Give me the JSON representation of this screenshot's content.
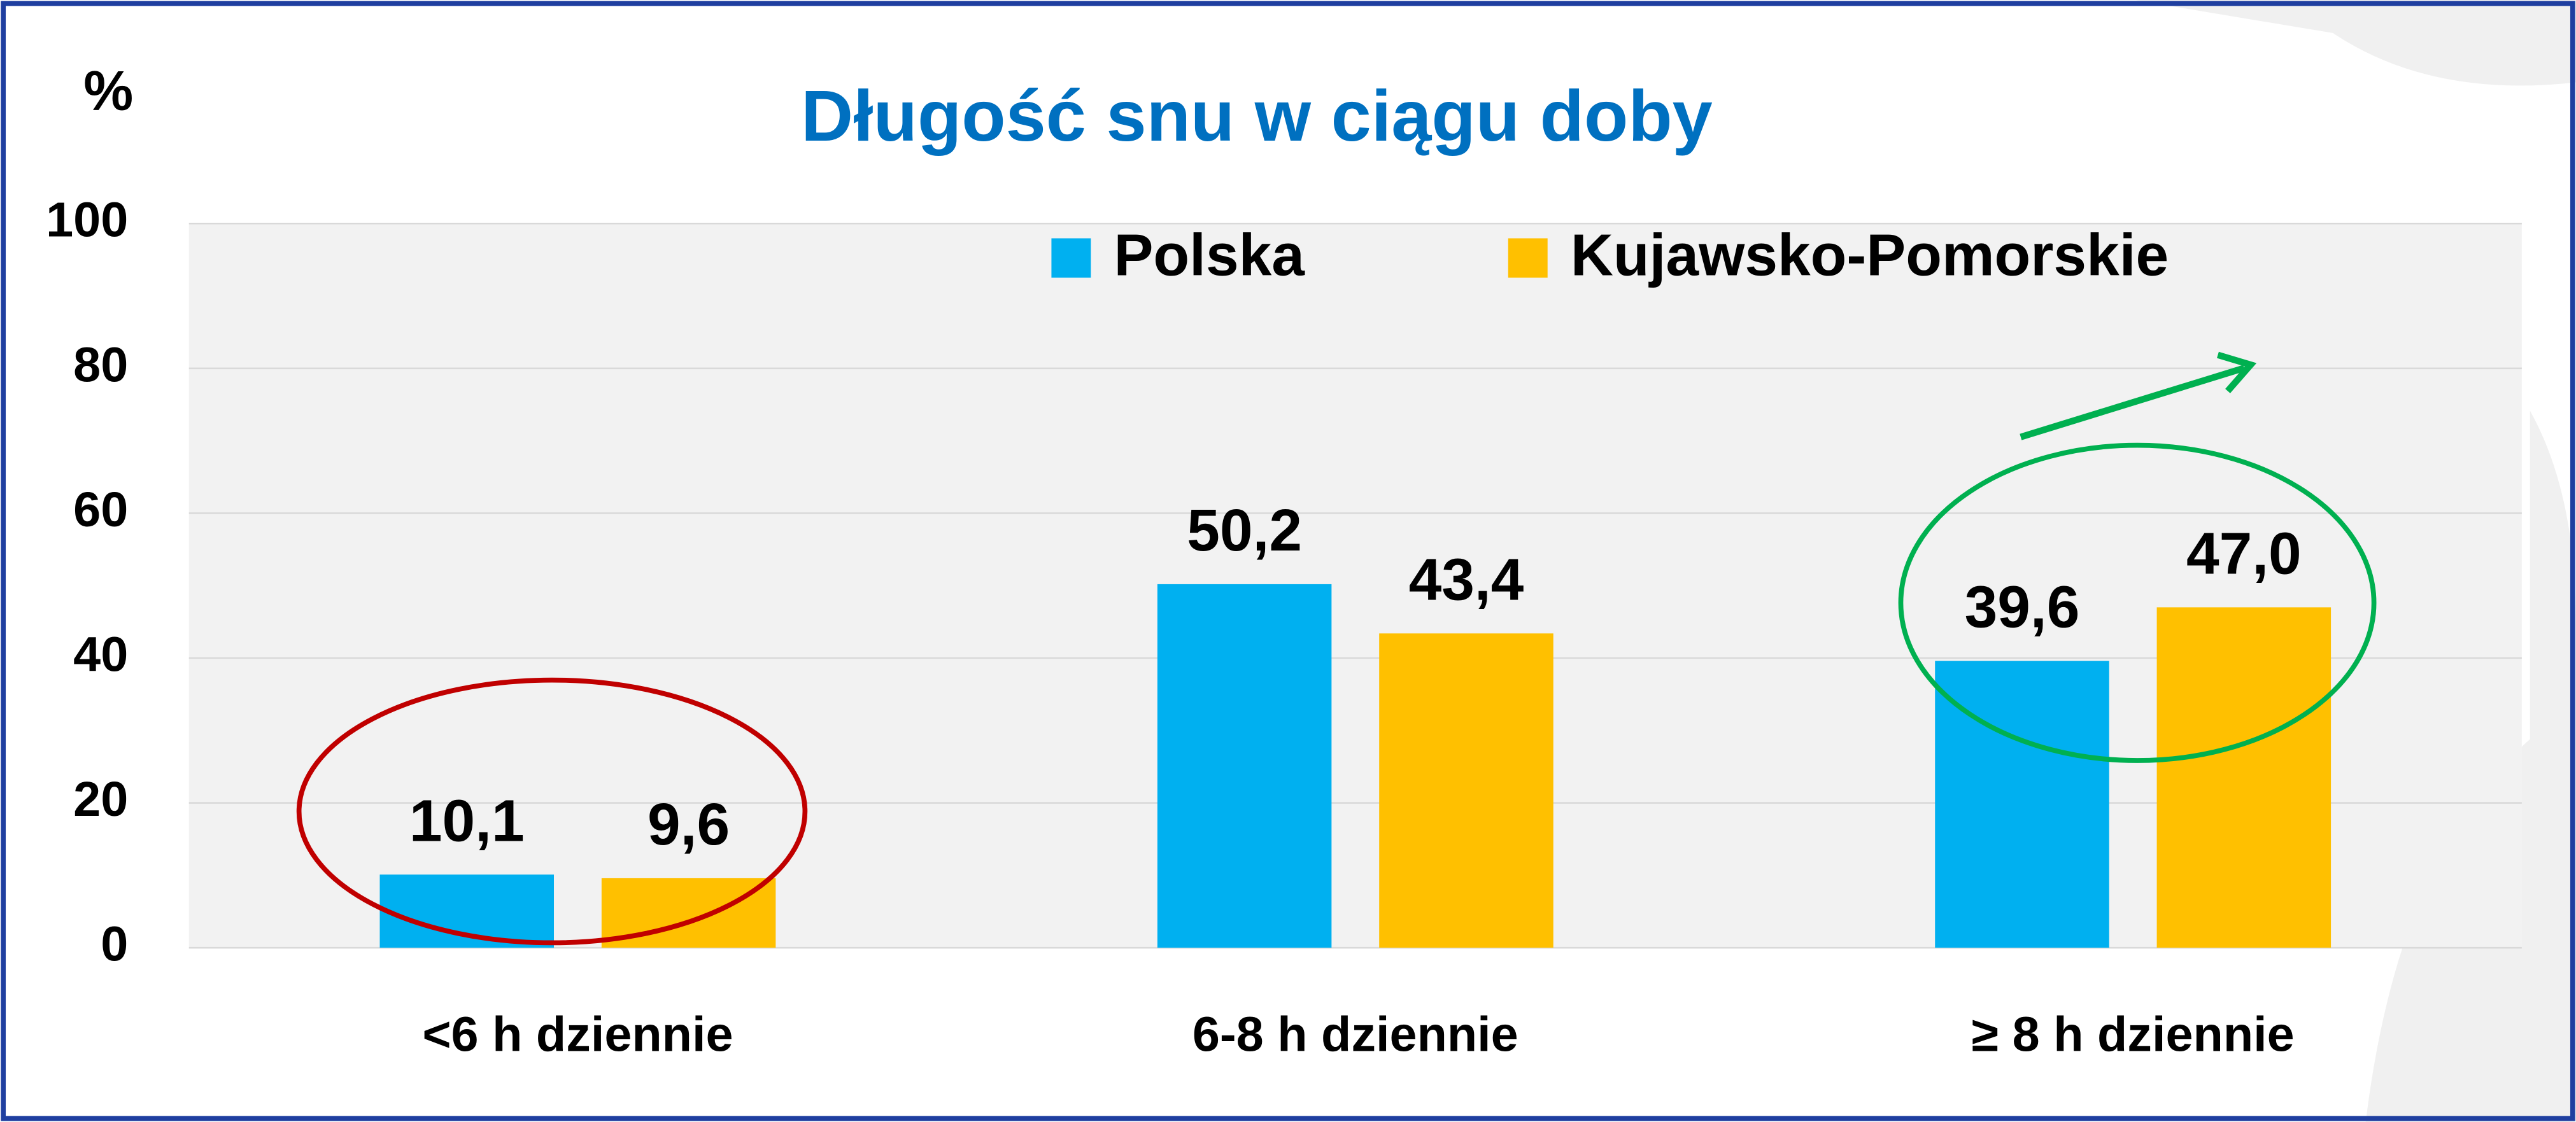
{
  "chart_data": {
    "type": "bar",
    "title": "Długość snu w ciągu doby",
    "y_label": "%",
    "categories": [
      "<6 h dziennie",
      "6-8 h dziennie",
      "≥ 8 h dziennie"
    ],
    "series": [
      {
        "name": "Polska",
        "color": "#00b0f0",
        "values": [
          10.1,
          50.2,
          39.6
        ],
        "value_labels": [
          "10,1",
          "50,2",
          "39,6"
        ]
      },
      {
        "name": "Kujawsko-Pomorskie",
        "color": "#ffc000",
        "values": [
          9.6,
          43.4,
          47.0
        ],
        "value_labels": [
          "9,6",
          "43,4",
          "47,0"
        ]
      }
    ],
    "ylim": [
      0,
      100
    ],
    "yticks": [
      0,
      20,
      40,
      60,
      80,
      100
    ],
    "grid": true,
    "legend": "top"
  }
}
